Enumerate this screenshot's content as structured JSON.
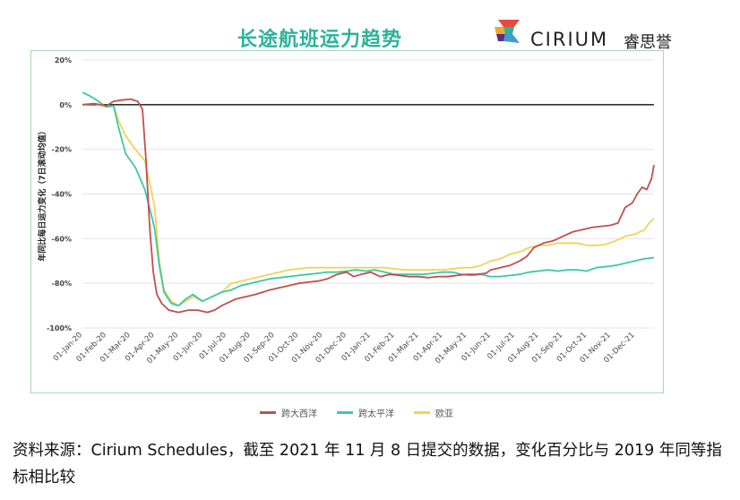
{
  "header": {
    "title": "长途航班运力趋势",
    "logo_text": "CIRIUM",
    "logo_cn": "睿思誉"
  },
  "footer": {
    "source_line": "资料来源：Cirium Schedules，截至 2021 年 11 月 8 日提交的数据，变化百分比与 2019 年同等指标相比较"
  },
  "colors": {
    "title": "#2BB39A",
    "transatlantic": "#C0504D",
    "transpacific": "#3CC9A4",
    "europe": "#F0D35A",
    "zero_line": "#333333",
    "frame": "#A8D8B8"
  },
  "chart_data": {
    "type": "line",
    "ylabel": "年同比每日运力变化（7日滚动均值）",
    "xlabel": "",
    "ylim": [
      -100,
      20
    ],
    "yticks": [
      20,
      0,
      -20,
      -40,
      -60,
      -80,
      -100
    ],
    "ytick_labels": [
      "20%",
      "0%",
      "-20%",
      "-40%",
      "-60%",
      "-80%",
      "-100%"
    ],
    "xlim": [
      0,
      23.8
    ],
    "x_tick_labels": [
      "01-Jan-20",
      "01-Feb-20",
      "01-Mar-20",
      "01-Apr-20",
      "01-May-20",
      "01-Jun-20",
      "01-Jul-20",
      "01-Aug-20",
      "01-Sep-20",
      "01-Oct-20",
      "01-Nov-20",
      "01-Dec-20",
      "01-Jan-21",
      "01-Feb-21",
      "01-Mar-21",
      "01-Apr-21",
      "01-May-21",
      "01-Jun-21",
      "01-Jul-21",
      "01-Aug-21",
      "01-Sep-21",
      "01-Oct-21",
      "01-Nov-21",
      "01-Dec-21"
    ],
    "grid": true,
    "legend_position": "bottom",
    "series": [
      {
        "name": "跨大西洋",
        "color_key": "transatlantic",
        "points": [
          [
            0,
            0
          ],
          [
            0.5,
            0.5
          ],
          [
            1,
            -0.5
          ],
          [
            1.3,
            1.5
          ],
          [
            1.6,
            2
          ],
          [
            2,
            2.5
          ],
          [
            2.3,
            1.5
          ],
          [
            2.5,
            -2
          ],
          [
            2.65,
            -25
          ],
          [
            2.8,
            -55
          ],
          [
            2.95,
            -75
          ],
          [
            3.1,
            -85
          ],
          [
            3.3,
            -89
          ],
          [
            3.6,
            -92
          ],
          [
            4,
            -93
          ],
          [
            4.4,
            -92
          ],
          [
            4.8,
            -92
          ],
          [
            5.2,
            -93
          ],
          [
            5.5,
            -92
          ],
          [
            5.8,
            -90
          ],
          [
            6,
            -89
          ],
          [
            6.4,
            -87
          ],
          [
            6.8,
            -86
          ],
          [
            7.2,
            -85
          ],
          [
            7.5,
            -84
          ],
          [
            7.8,
            -83
          ],
          [
            8.2,
            -82
          ],
          [
            8.6,
            -81
          ],
          [
            9,
            -80
          ],
          [
            9.4,
            -79.5
          ],
          [
            9.8,
            -79
          ],
          [
            10.2,
            -78
          ],
          [
            10.6,
            -76
          ],
          [
            11,
            -75
          ],
          [
            11.3,
            -77
          ],
          [
            11.6,
            -76
          ],
          [
            12,
            -75
          ],
          [
            12.4,
            -77
          ],
          [
            12.8,
            -76
          ],
          [
            13.2,
            -76.5
          ],
          [
            13.6,
            -77
          ],
          [
            14,
            -77
          ],
          [
            14.4,
            -77.5
          ],
          [
            14.8,
            -77
          ],
          [
            15.2,
            -77
          ],
          [
            15.6,
            -76.5
          ],
          [
            16,
            -76
          ],
          [
            16.4,
            -76
          ],
          [
            16.8,
            -75.5
          ],
          [
            17,
            -74
          ],
          [
            17.4,
            -73
          ],
          [
            17.8,
            -72
          ],
          [
            18.2,
            -70
          ],
          [
            18.5,
            -68
          ],
          [
            18.8,
            -64
          ],
          [
            19.2,
            -62
          ],
          [
            19.6,
            -61
          ],
          [
            20,
            -59
          ],
          [
            20.4,
            -57
          ],
          [
            20.8,
            -56
          ],
          [
            21.2,
            -55
          ],
          [
            21.6,
            -54.5
          ],
          [
            22,
            -54
          ],
          [
            22.3,
            -53
          ],
          [
            22.6,
            -46
          ],
          [
            22.9,
            -44
          ],
          [
            23.1,
            -40
          ],
          [
            23.3,
            -37
          ],
          [
            23.5,
            -38
          ],
          [
            23.7,
            -33
          ],
          [
            23.8,
            -27
          ]
        ]
      },
      {
        "name": "跨太平洋",
        "color_key": "transpacific",
        "points": [
          [
            0,
            5.5
          ],
          [
            0.3,
            4
          ],
          [
            0.6,
            2
          ],
          [
            1,
            -1
          ],
          [
            1.3,
            -0.5
          ],
          [
            1.5,
            -10
          ],
          [
            1.8,
            -22
          ],
          [
            2.2,
            -28
          ],
          [
            2.6,
            -38
          ],
          [
            3,
            -55
          ],
          [
            3.2,
            -72
          ],
          [
            3.4,
            -84
          ],
          [
            3.7,
            -89
          ],
          [
            4,
            -90
          ],
          [
            4.3,
            -87
          ],
          [
            4.6,
            -85
          ],
          [
            5,
            -88
          ],
          [
            5.4,
            -86
          ],
          [
            5.8,
            -84
          ],
          [
            6.2,
            -83
          ],
          [
            6.6,
            -81
          ],
          [
            7,
            -80
          ],
          [
            7.4,
            -79
          ],
          [
            7.8,
            -78
          ],
          [
            8.2,
            -77.5
          ],
          [
            8.6,
            -77
          ],
          [
            9,
            -76.5
          ],
          [
            9.4,
            -76
          ],
          [
            9.8,
            -75.5
          ],
          [
            10.2,
            -75
          ],
          [
            10.6,
            -75
          ],
          [
            11,
            -74.5
          ],
          [
            11.4,
            -74
          ],
          [
            11.8,
            -74.5
          ],
          [
            12.2,
            -74
          ],
          [
            12.6,
            -75
          ],
          [
            13,
            -76
          ],
          [
            13.4,
            -76
          ],
          [
            13.8,
            -76
          ],
          [
            14.2,
            -76
          ],
          [
            14.6,
            -75.5
          ],
          [
            15,
            -75
          ],
          [
            15.4,
            -75
          ],
          [
            15.8,
            -76
          ],
          [
            16.2,
            -76.5
          ],
          [
            16.6,
            -76
          ],
          [
            17,
            -77
          ],
          [
            17.4,
            -77
          ],
          [
            17.8,
            -76.5
          ],
          [
            18.2,
            -76
          ],
          [
            18.6,
            -75
          ],
          [
            19,
            -74.5
          ],
          [
            19.4,
            -74
          ],
          [
            19.8,
            -74.5
          ],
          [
            20.2,
            -74
          ],
          [
            20.6,
            -74
          ],
          [
            21,
            -74.5
          ],
          [
            21.4,
            -73
          ],
          [
            21.8,
            -72.5
          ],
          [
            22.2,
            -72
          ],
          [
            22.6,
            -71
          ],
          [
            23,
            -70
          ],
          [
            23.4,
            -69
          ],
          [
            23.8,
            -68.5
          ]
        ]
      },
      {
        "name": "欧亚",
        "color_key": "europe",
        "points": [
          [
            0,
            0
          ],
          [
            0.5,
            0.5
          ],
          [
            1,
            -1
          ],
          [
            1.3,
            -0.5
          ],
          [
            1.5,
            -7
          ],
          [
            1.8,
            -14
          ],
          [
            2.2,
            -20
          ],
          [
            2.6,
            -25
          ],
          [
            3,
            -45
          ],
          [
            3.2,
            -70
          ],
          [
            3.4,
            -83
          ],
          [
            3.7,
            -88
          ],
          [
            4,
            -90
          ],
          [
            4.3,
            -88
          ],
          [
            4.6,
            -86
          ],
          [
            5,
            -88
          ],
          [
            5.4,
            -86
          ],
          [
            5.8,
            -84
          ],
          [
            6.2,
            -80
          ],
          [
            6.6,
            -79
          ],
          [
            7,
            -78
          ],
          [
            7.4,
            -77
          ],
          [
            7.8,
            -76
          ],
          [
            8.2,
            -75
          ],
          [
            8.6,
            -74
          ],
          [
            9,
            -73.5
          ],
          [
            9.4,
            -73
          ],
          [
            9.8,
            -73
          ],
          [
            10.2,
            -73
          ],
          [
            10.6,
            -73
          ],
          [
            11,
            -73
          ],
          [
            11.4,
            -73
          ],
          [
            11.8,
            -73
          ],
          [
            12.2,
            -73
          ],
          [
            12.6,
            -73
          ],
          [
            13,
            -73.5
          ],
          [
            13.4,
            -74
          ],
          [
            13.8,
            -74
          ],
          [
            14.2,
            -74
          ],
          [
            14.6,
            -74
          ],
          [
            15,
            -74
          ],
          [
            15.4,
            -73.5
          ],
          [
            15.8,
            -73
          ],
          [
            16.2,
            -73
          ],
          [
            16.6,
            -72
          ],
          [
            17,
            -70
          ],
          [
            17.4,
            -69
          ],
          [
            17.8,
            -67
          ],
          [
            18.2,
            -66
          ],
          [
            18.6,
            -64
          ],
          [
            19,
            -63
          ],
          [
            19.4,
            -63
          ],
          [
            19.8,
            -62
          ],
          [
            20.2,
            -62
          ],
          [
            20.6,
            -62
          ],
          [
            21,
            -63
          ],
          [
            21.4,
            -63
          ],
          [
            21.8,
            -62.5
          ],
          [
            22.2,
            -61
          ],
          [
            22.6,
            -59
          ],
          [
            23,
            -58
          ],
          [
            23.4,
            -56
          ],
          [
            23.6,
            -53
          ],
          [
            23.8,
            -51
          ]
        ]
      }
    ]
  }
}
